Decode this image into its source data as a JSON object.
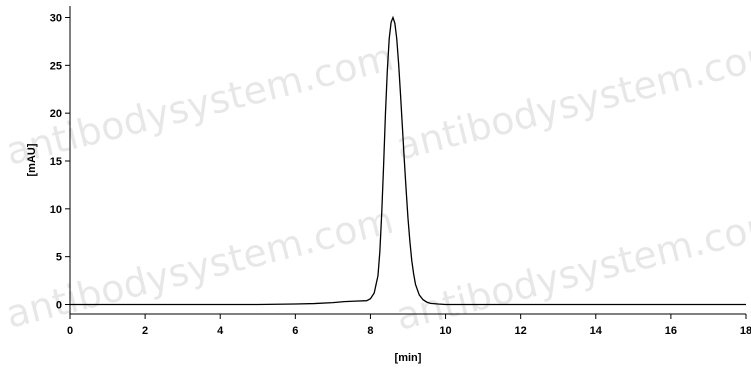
{
  "chart_data": {
    "type": "line",
    "title": "",
    "xlabel": "[min]",
    "ylabel": "[mAU]",
    "xlim": [
      0,
      18
    ],
    "ylim": [
      -1,
      31
    ],
    "x_ticks": [
      0,
      2,
      4,
      6,
      8,
      10,
      12,
      14,
      16,
      18
    ],
    "y_ticks": [
      0,
      5,
      10,
      15,
      20,
      25,
      30
    ],
    "grid": false,
    "legend": "none",
    "series": [
      {
        "color": "#000000",
        "x": [
          0,
          1,
          2,
          3,
          4,
          5,
          6,
          6.5,
          7,
          7.3,
          7.6,
          7.9,
          8.0,
          8.1,
          8.2,
          8.25,
          8.3,
          8.35,
          8.4,
          8.45,
          8.5,
          8.55,
          8.6,
          8.65,
          8.7,
          8.75,
          8.8,
          8.85,
          8.9,
          8.95,
          9.0,
          9.05,
          9.1,
          9.15,
          9.2,
          9.3,
          9.4,
          9.5,
          9.6,
          9.8,
          10,
          11,
          12,
          13,
          14,
          15,
          16,
          17,
          18
        ],
        "y": [
          0,
          0,
          0,
          0,
          0,
          0,
          0.05,
          0.1,
          0.2,
          0.3,
          0.35,
          0.4,
          0.6,
          1.2,
          3.0,
          5.5,
          9.5,
          14.5,
          20.0,
          24.5,
          27.8,
          29.5,
          30.0,
          29.4,
          27.8,
          25.2,
          22.0,
          18.6,
          15.2,
          12.0,
          9.0,
          6.6,
          4.6,
          3.2,
          2.1,
          1.0,
          0.5,
          0.25,
          0.12,
          0.05,
          0,
          0,
          0,
          0,
          0,
          0,
          0,
          0,
          0
        ]
      }
    ]
  },
  "watermark": {
    "text": "antibodysystem.com",
    "color": "#000000"
  }
}
